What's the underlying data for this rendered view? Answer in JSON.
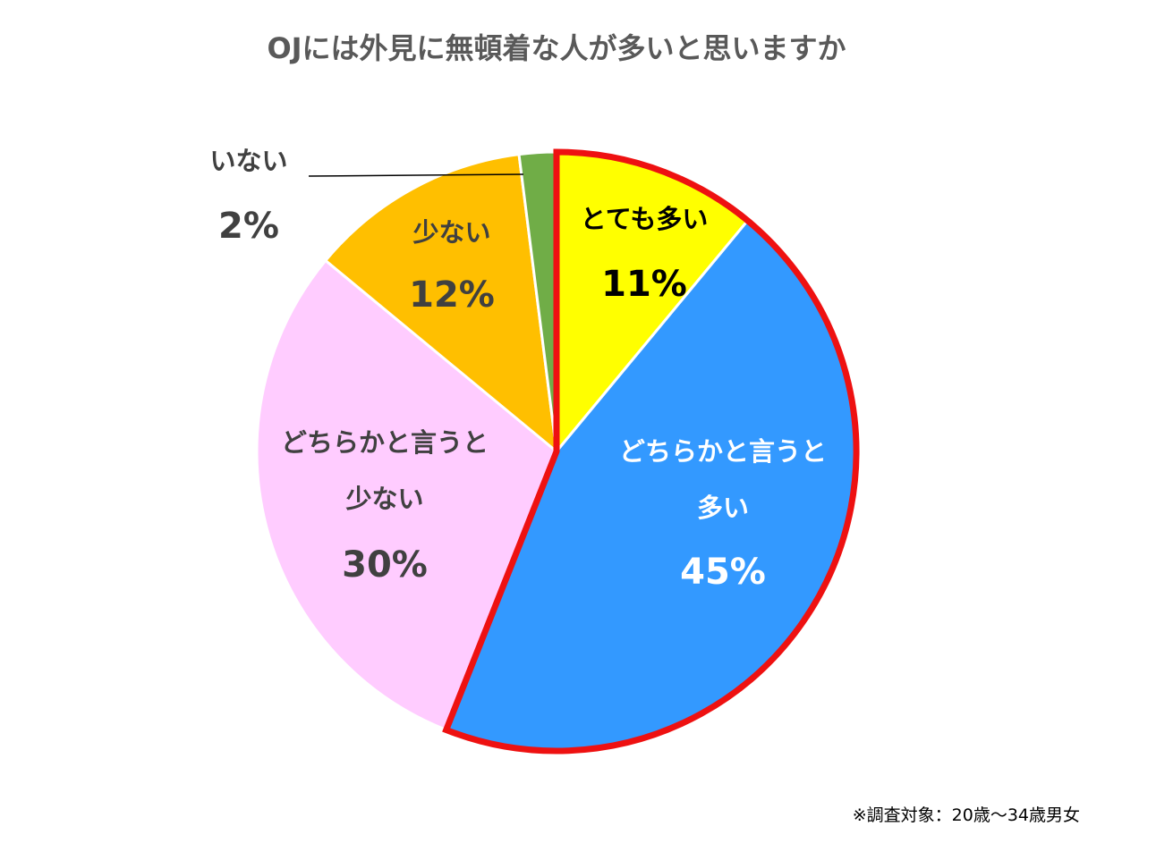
{
  "chart_data": {
    "type": "pie",
    "title": "OJには外見に無頓着な人が多いと思いますか",
    "categories": [
      "とても多い",
      "どちらかと言うと多い",
      "どちらかと言うと少ない",
      "少ない",
      "いない"
    ],
    "values": [
      11,
      45,
      30,
      12,
      2
    ],
    "value_labels": [
      "11%",
      "45%",
      "30%",
      "12%",
      "2%"
    ],
    "colors": [
      "#ffff00",
      "#3399ff",
      "#ffccff",
      "#ffbf00",
      "#70ad47"
    ],
    "label_colors": [
      "#000000",
      "#ffffff",
      "#404040",
      "#404040",
      "#404040"
    ],
    "highlight": {
      "color": "#ee1111",
      "slices": [
        0,
        1
      ]
    },
    "note": "※調査対象：20歳〜34歳男女"
  }
}
